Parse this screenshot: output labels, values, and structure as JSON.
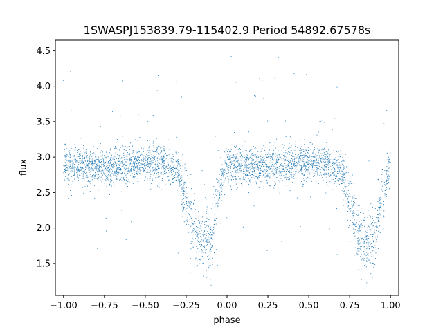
{
  "chart_data": {
    "type": "scatter",
    "title": "1SWASPJ153839.79-115402.9 Period 54892.67578s",
    "xlabel": "phase",
    "ylabel": "flux",
    "xlim": [
      -1.05,
      1.05
    ],
    "ylim": [
      1.05,
      4.65
    ],
    "xticks": [
      -1.0,
      -0.75,
      -0.5,
      -0.25,
      0.0,
      0.25,
      0.5,
      0.75,
      1.0
    ],
    "xtick_labels": [
      "−1.00",
      "−0.75",
      "−0.50",
      "−0.25",
      "0.00",
      "0.25",
      "0.50",
      "0.75",
      "1.00"
    ],
    "yticks": [
      1.5,
      2.0,
      2.5,
      3.0,
      3.5,
      4.0,
      4.5
    ],
    "ytick_labels": [
      "1.5",
      "2.0",
      "2.5",
      "3.0",
      "3.5",
      "4.0",
      "4.5"
    ],
    "grid": false,
    "legend": "none",
    "point_color": "#1f77b4",
    "series_profile": {
      "phase": [
        -1.0,
        -0.9,
        -0.75,
        -0.6,
        -0.5,
        -0.4,
        -0.3,
        -0.25,
        -0.2,
        -0.15,
        -0.1,
        -0.05,
        0.0,
        0.1,
        0.25,
        0.4,
        0.5,
        0.6,
        0.7,
        0.75,
        0.8,
        0.85,
        0.9,
        0.95,
        1.0
      ],
      "median_flux": [
        2.88,
        2.9,
        2.85,
        2.9,
        2.92,
        2.9,
        2.82,
        2.4,
        1.95,
        1.78,
        1.82,
        2.5,
        2.88,
        2.9,
        2.85,
        2.9,
        2.92,
        2.9,
        2.82,
        2.4,
        1.95,
        1.78,
        1.82,
        2.5,
        2.88
      ]
    }
  }
}
